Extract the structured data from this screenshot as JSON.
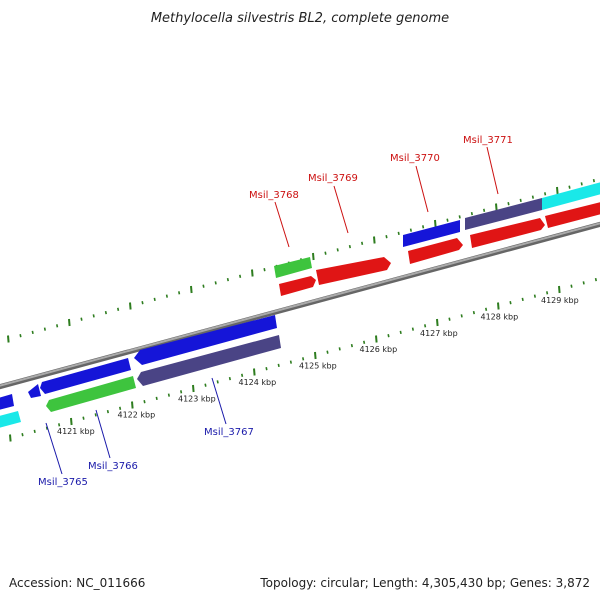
{
  "title": "Methylocella silvestris BL2, complete genome",
  "footer": {
    "accession": "Accession: NC_011666",
    "summary": "Topology: circular; Length: 4,305,430 bp; Genes: 3,872"
  },
  "colors": {
    "backbone": "#888888",
    "tick": "#2e7d1f",
    "label_forward": "#cc1111",
    "label_reverse": "#1a1aaa",
    "blue": "#1515d8",
    "red": "#e01515",
    "green": "#3ec43e",
    "slate": "#4a4485",
    "cyan": "#1ae8e8"
  },
  "axis": {
    "tick_labels": [
      "4121 kbp",
      "4122 kbp",
      "4123 kbp",
      "4124 kbp",
      "4125 kbp",
      "4126 kbp",
      "4127 kbp",
      "4128 kbp",
      "4129 kbp"
    ]
  },
  "genes": {
    "forward_labeled": [
      "Msil_3768",
      "Msil_3769",
      "Msil_3770",
      "Msil_3771"
    ],
    "reverse_labeled": [
      "Msil_3765",
      "Msil_3766",
      "Msil_3767"
    ]
  }
}
